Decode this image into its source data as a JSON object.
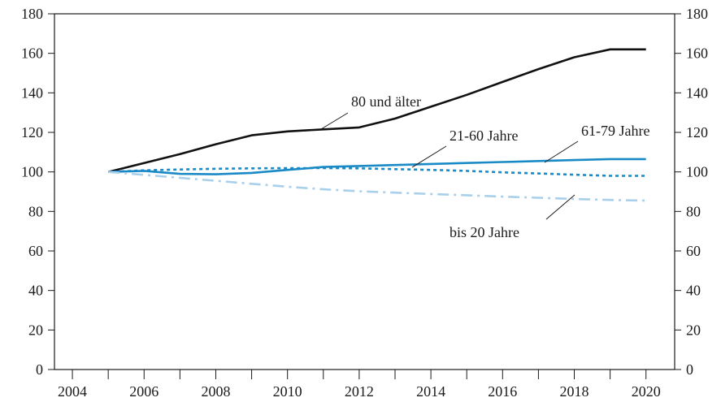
{
  "chart_data": {
    "type": "line",
    "title": "",
    "xlabel": "",
    "ylabel": "",
    "xlim": [
      2004,
      2020
    ],
    "ylim": [
      0,
      180
    ],
    "x_ticks": [
      "2004",
      "2006",
      "2008",
      "2010",
      "2012",
      "2014",
      "2016",
      "2018",
      "2020"
    ],
    "y_ticks": [
      "0",
      "20",
      "40",
      "60",
      "80",
      "100",
      "120",
      "140",
      "160",
      "180"
    ],
    "grid": false,
    "legend": "none (series labelled directly on chart)",
    "series": [
      {
        "name": "80 und älter",
        "color": "#111111",
        "style": "solid",
        "x": [
          2005,
          2006,
          2007,
          2008,
          2009,
          2010,
          2011,
          2012,
          2013,
          2014,
          2015,
          2016,
          2017,
          2018,
          2019,
          2020
        ],
        "values": [
          100,
          104.5,
          109,
          114,
          118.5,
          120.5,
          121.5,
          122.5,
          127,
          133,
          139,
          145.5,
          152,
          158,
          162,
          162
        ]
      },
      {
        "name": "61-79 Jahre",
        "color": "#1a8ac6",
        "style": "solid",
        "x": [
          2005,
          2006,
          2007,
          2008,
          2009,
          2010,
          2011,
          2012,
          2013,
          2014,
          2015,
          2016,
          2017,
          2018,
          2019,
          2020
        ],
        "values": [
          100,
          100.5,
          99,
          98.8,
          99.5,
          101,
          102.5,
          103,
          103.5,
          104,
          104.5,
          105,
          105.5,
          106,
          106.5,
          106.5
        ]
      },
      {
        "name": "21-60 Jahre",
        "color": "#1a8ac6",
        "style": "dotted",
        "x": [
          2005,
          2006,
          2007,
          2008,
          2009,
          2010,
          2011,
          2012,
          2013,
          2014,
          2015,
          2016,
          2017,
          2018,
          2019,
          2020
        ],
        "values": [
          100,
          100.8,
          101.2,
          101.6,
          101.8,
          101.9,
          101.9,
          101.8,
          101.4,
          101,
          100.5,
          99.8,
          99.2,
          98.6,
          98,
          98
        ]
      },
      {
        "name": "bis 20 Jahre",
        "color": "#a9d0eb",
        "style": "dashdot",
        "x": [
          2005,
          2006,
          2007,
          2008,
          2009,
          2010,
          2011,
          2012,
          2013,
          2014,
          2015,
          2016,
          2017,
          2018,
          2019,
          2020
        ],
        "values": [
          100,
          98.5,
          97,
          95.5,
          94,
          92.5,
          91.2,
          90.2,
          89.5,
          88.8,
          88.2,
          87.5,
          86.9,
          86.3,
          85.8,
          85.5
        ]
      }
    ],
    "annotations": [
      {
        "text": "80 und älter",
        "series": "80 und älter"
      },
      {
        "text": "21-60 Jahre",
        "series": "21-60 Jahre"
      },
      {
        "text": "61-79 Jahre",
        "series": "61-79 Jahre"
      },
      {
        "text": "bis 20 Jahre",
        "series": "bis 20 Jahre"
      }
    ]
  }
}
